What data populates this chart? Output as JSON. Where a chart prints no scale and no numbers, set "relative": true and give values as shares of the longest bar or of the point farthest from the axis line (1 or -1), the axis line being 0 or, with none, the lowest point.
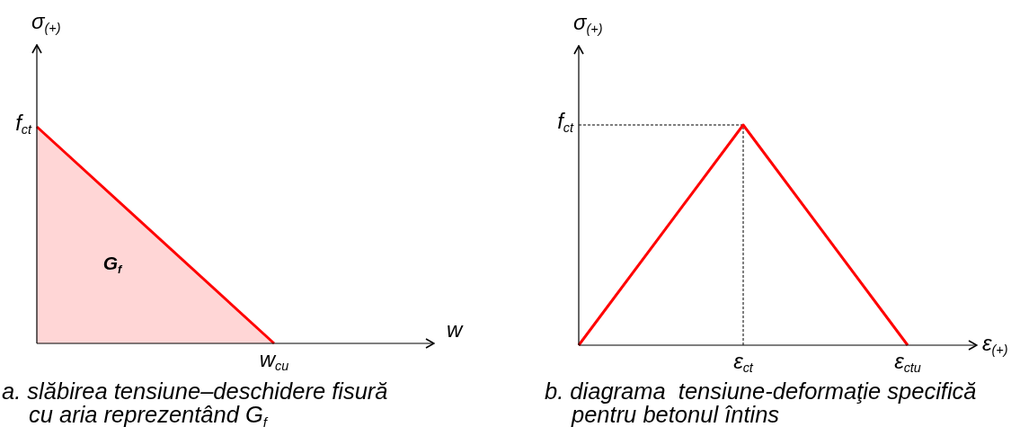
{
  "chart_data": [
    {
      "type": "area",
      "relative": true,
      "title": "a. slăbirea tensiune–deschidere fisură cu aria reprezentând G$_{f}$",
      "xlabel": "w",
      "ylabel": "σ$_{(+)}$",
      "categories": [
        null,
        null
      ],
      "values": [
        1,
        0
      ],
      "color": "#ff0000",
      "annotations": [
        "f$_{ct}$",
        "w$_{cu}$",
        "G$_{f}$"
      ]
    },
    {
      "type": "line",
      "relative": true,
      "title": "b. diagrama  tensiune-deformaţie specifică pentru betonul întins",
      "xlabel": "ε$_{(+)}$",
      "ylabel": "σ$_{(+)}$",
      "categories": [
        null,
        "ε$_{ct}$",
        "ε$_{ctu}$"
      ],
      "values": [
        0,
        1,
        0
      ],
      "color": "#ff0000",
      "annotations": [
        "f$_{ct}$"
      ],
      "ref_lines": [
        {
          "axis": "y",
          "value": 1,
          "color": "#000000",
          "line_style": "dashed"
        },
        {
          "axis": "x",
          "value": "ε$_{ct}$",
          "color": "#000000",
          "line_style": "dashed"
        }
      ]
    }
  ]
}
